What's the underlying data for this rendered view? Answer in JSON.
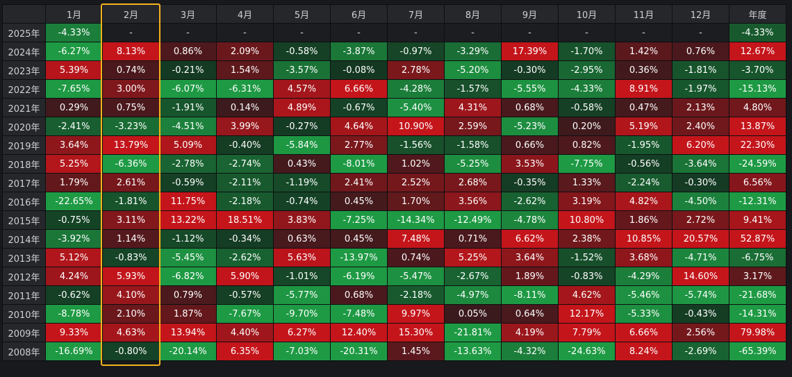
{
  "chart_data": {
    "type": "heatmap",
    "columns": [
      "1月",
      "2月",
      "3月",
      "4月",
      "5月",
      "6月",
      "7月",
      "8月",
      "9月",
      "10月",
      "11月",
      "12月",
      "年度"
    ],
    "rows": [
      {
        "label": "2025年",
        "values": [
          "-4.33%",
          "-",
          "-",
          "-",
          "-",
          "-",
          "-",
          "-",
          "-",
          "-",
          "-",
          "-",
          "-4.33%"
        ]
      },
      {
        "label": "2024年",
        "values": [
          "-6.27%",
          "8.13%",
          "0.86%",
          "2.09%",
          "-0.58%",
          "-3.87%",
          "-0.97%",
          "-3.29%",
          "17.39%",
          "-1.70%",
          "1.42%",
          "0.76%",
          "12.67%"
        ]
      },
      {
        "label": "2023年",
        "values": [
          "5.39%",
          "0.74%",
          "-0.21%",
          "1.54%",
          "-3.57%",
          "-0.08%",
          "2.78%",
          "-5.20%",
          "-0.30%",
          "-2.95%",
          "0.36%",
          "-1.81%",
          "-3.70%"
        ]
      },
      {
        "label": "2022年",
        "values": [
          "-7.65%",
          "3.00%",
          "-6.07%",
          "-6.31%",
          "4.57%",
          "6.66%",
          "-4.28%",
          "-1.57%",
          "-5.55%",
          "-4.33%",
          "8.91%",
          "-1.97%",
          "-15.13%"
        ]
      },
      {
        "label": "2021年",
        "values": [
          "0.29%",
          "0.75%",
          "-1.91%",
          "0.14%",
          "4.89%",
          "-0.67%",
          "-5.40%",
          "4.31%",
          "0.68%",
          "-0.58%",
          "0.47%",
          "2.13%",
          "4.80%"
        ]
      },
      {
        "label": "2020年",
        "values": [
          "-2.41%",
          "-3.23%",
          "-4.51%",
          "3.99%",
          "-0.27%",
          "4.64%",
          "10.90%",
          "2.59%",
          "-5.23%",
          "0.20%",
          "5.19%",
          "2.40%",
          "13.87%"
        ]
      },
      {
        "label": "2019年",
        "values": [
          "3.64%",
          "13.79%",
          "5.09%",
          "-0.40%",
          "-5.84%",
          "2.77%",
          "-1.56%",
          "-1.58%",
          "0.66%",
          "0.82%",
          "-1.95%",
          "6.20%",
          "22.30%"
        ]
      },
      {
        "label": "2018年",
        "values": [
          "5.25%",
          "-6.36%",
          "-2.78%",
          "-2.74%",
          "0.43%",
          "-8.01%",
          "1.02%",
          "-5.25%",
          "3.53%",
          "-7.75%",
          "-0.56%",
          "-3.64%",
          "-24.59%"
        ]
      },
      {
        "label": "2017年",
        "values": [
          "1.79%",
          "2.61%",
          "-0.59%",
          "-2.11%",
          "-1.19%",
          "2.41%",
          "2.52%",
          "2.68%",
          "-0.35%",
          "1.33%",
          "-2.24%",
          "-0.30%",
          "6.56%"
        ]
      },
      {
        "label": "2016年",
        "values": [
          "-22.65%",
          "-1.81%",
          "11.75%",
          "-2.18%",
          "-0.74%",
          "0.45%",
          "1.70%",
          "3.56%",
          "-2.62%",
          "3.19%",
          "4.82%",
          "-4.50%",
          "-12.31%"
        ]
      },
      {
        "label": "2015年",
        "values": [
          "-0.75%",
          "3.11%",
          "13.22%",
          "18.51%",
          "3.83%",
          "-7.25%",
          "-14.34%",
          "-12.49%",
          "-4.78%",
          "10.80%",
          "1.86%",
          "2.72%",
          "9.41%"
        ]
      },
      {
        "label": "2014年",
        "values": [
          "-3.92%",
          "1.14%",
          "-1.12%",
          "-0.34%",
          "0.63%",
          "0.45%",
          "7.48%",
          "0.71%",
          "6.62%",
          "2.38%",
          "10.85%",
          "20.57%",
          "52.87%"
        ]
      },
      {
        "label": "2013年",
        "values": [
          "5.12%",
          "-0.83%",
          "-5.45%",
          "-2.62%",
          "5.63%",
          "-13.97%",
          "0.74%",
          "5.25%",
          "3.64%",
          "-1.52%",
          "3.68%",
          "-4.71%",
          "-6.75%"
        ]
      },
      {
        "label": "2012年",
        "values": [
          "4.24%",
          "5.93%",
          "-6.82%",
          "5.90%",
          "-1.01%",
          "-6.19%",
          "-5.47%",
          "-2.67%",
          "1.89%",
          "-0.83%",
          "-4.29%",
          "14.60%",
          "3.17%"
        ]
      },
      {
        "label": "2011年",
        "values": [
          "-0.62%",
          "4.10%",
          "0.79%",
          "-0.57%",
          "-5.77%",
          "0.68%",
          "-2.18%",
          "-4.97%",
          "-8.11%",
          "4.62%",
          "-5.46%",
          "-5.74%",
          "-21.68%"
        ]
      },
      {
        "label": "2010年",
        "values": [
          "-8.78%",
          "2.10%",
          "1.87%",
          "-7.67%",
          "-9.70%",
          "-7.48%",
          "9.97%",
          "0.05%",
          "0.64%",
          "12.17%",
          "-5.33%",
          "-0.43%",
          "-14.31%"
        ]
      },
      {
        "label": "2009年",
        "values": [
          "9.33%",
          "4.63%",
          "13.94%",
          "4.40%",
          "6.27%",
          "12.40%",
          "15.30%",
          "-21.81%",
          "4.19%",
          "7.79%",
          "6.66%",
          "2.56%",
          "79.98%"
        ]
      },
      {
        "label": "2008年",
        "values": [
          "-16.69%",
          "-0.80%",
          "-20.14%",
          "6.35%",
          "-7.03%",
          "-20.31%",
          "1.45%",
          "-13.63%",
          "-4.32%",
          "-24.63%",
          "8.24%",
          "-2.69%",
          "-65.39%"
        ]
      }
    ],
    "highlighted_column": "2月",
    "colors": {
      "positive_strong": "#c4151b",
      "positive_weak": "#3a1a1d",
      "negative_strong": "#1e9a44",
      "negative_weak": "#143622",
      "no_data": "#1b1d20",
      "highlight_border": "#f5b31c"
    }
  }
}
